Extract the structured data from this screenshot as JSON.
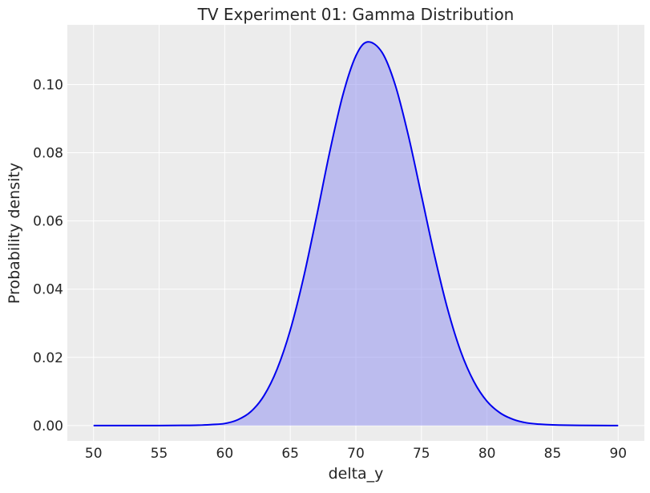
{
  "chart_data": {
    "type": "area",
    "title": "TV Experiment 01: Gamma Distribution",
    "xlabel": "delta_y",
    "ylabel": "Probability density",
    "xlim": [
      48,
      92
    ],
    "ylim": [
      -0.0045,
      0.1175
    ],
    "xticks": [
      50,
      55,
      60,
      65,
      70,
      75,
      80,
      85,
      90
    ],
    "yticks": [
      0.0,
      0.02,
      0.04,
      0.06,
      0.08,
      0.1
    ],
    "ytick_labels": [
      "0.00",
      "0.02",
      "0.04",
      "0.06",
      "0.08",
      "0.10"
    ],
    "grid": true,
    "legend": "none",
    "colors": {
      "line": "#0000ee",
      "fill": "#8c8cf0",
      "plot_background": "#ececec",
      "grid": "#ffffff"
    },
    "series": [
      {
        "x": [
          50,
          55,
          57,
          58,
          59,
          60,
          61,
          62,
          63,
          64,
          65,
          66,
          67,
          68,
          69,
          70,
          70.9,
          72,
          73,
          74,
          75,
          76,
          77,
          78,
          79,
          80,
          81,
          82,
          83,
          84,
          85,
          87,
          90
        ],
        "y": [
          0.0,
          0.0,
          5e-05,
          0.0001,
          0.0003,
          0.0006,
          0.0017,
          0.0041,
          0.0088,
          0.0166,
          0.028,
          0.0432,
          0.0612,
          0.0801,
          0.0968,
          0.1084,
          0.1125,
          0.1094,
          0.0999,
          0.0851,
          0.0675,
          0.0498,
          0.0341,
          0.0217,
          0.0129,
          0.0071,
          0.0037,
          0.0018,
          0.0008,
          0.0004,
          0.0002,
          5e-05,
          0.0
        ]
      }
    ]
  }
}
